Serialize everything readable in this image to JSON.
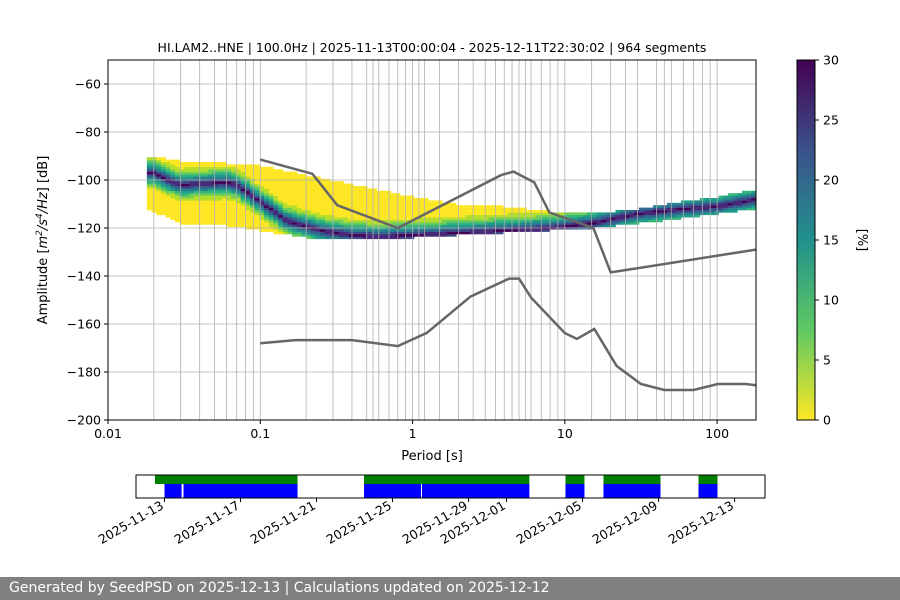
{
  "chart_data": {
    "type": "heatmap",
    "title": "HI.LAM2..HNE | 100.0Hz | 2025-11-13T00:00:04 - 2025-12-11T22:30:02 | 964 segments",
    "xlabel": "Period [s]",
    "ylabel_parts": [
      "Amplitude [",
      "m",
      "2",
      "/s",
      "4",
      "/Hz",
      "] [dB]"
    ],
    "x_scale": "log",
    "xlim": [
      0.01,
      180
    ],
    "ylim": [
      -200,
      -50
    ],
    "x_ticks": [
      {
        "value": 0.01,
        "label": "0.01"
      },
      {
        "value": 0.1,
        "label": "0.1"
      },
      {
        "value": 1,
        "label": "1"
      },
      {
        "value": 10,
        "label": "10"
      },
      {
        "value": 100,
        "label": "100"
      }
    ],
    "y_ticks": [
      {
        "value": -60,
        "label": "−60"
      },
      {
        "value": -80,
        "label": "−80"
      },
      {
        "value": -100,
        "label": "−100"
      },
      {
        "value": -120,
        "label": "−120"
      },
      {
        "value": -140,
        "label": "−140"
      },
      {
        "value": -160,
        "label": "−160"
      },
      {
        "value": -180,
        "label": "−180"
      },
      {
        "value": -200,
        "label": "−200"
      }
    ],
    "colorbar": {
      "label": "[%]",
      "range": [
        0,
        30
      ],
      "ticks": [
        {
          "value": 0,
          "label": "0"
        },
        {
          "value": 5,
          "label": "5"
        },
        {
          "value": 10,
          "label": "10"
        },
        {
          "value": 15,
          "label": "15"
        },
        {
          "value": 20,
          "label": "20"
        },
        {
          "value": 25,
          "label": "25"
        },
        {
          "value": 30,
          "label": "30"
        }
      ]
    },
    "noise_models": [
      {
        "name": "NHNM",
        "period": [
          0.1,
          0.22,
          0.32,
          0.8,
          3.8,
          4.6,
          6.3,
          7.9,
          15.4,
          20,
          180
        ],
        "db": [
          -91.5,
          -97.4,
          -110.5,
          -120,
          -98,
          -96.5,
          -101,
          -113.5,
          -120,
          -138.5,
          -129
        ]
      },
      {
        "name": "NLNM",
        "period": [
          0.1,
          0.17,
          0.4,
          0.8,
          1.24,
          2.4,
          4.3,
          5,
          6,
          10,
          12,
          15.6,
          21.9,
          31.6,
          45,
          70,
          101,
          154,
          180
        ],
        "db": [
          -168,
          -166.7,
          -166.7,
          -169.2,
          -163.7,
          -148.6,
          -141.1,
          -141.1,
          -149,
          -163.8,
          -166.2,
          -162.1,
          -177.5,
          -185,
          -187.5,
          -187.5,
          -185,
          -185,
          -185.5
        ]
      },
      {
        "name": "mode_ridge",
        "period": [
          0.02,
          0.025,
          0.03,
          0.04,
          0.06,
          0.07,
          0.1,
          0.15,
          0.25,
          0.4,
          0.6,
          1,
          2,
          4,
          8,
          15,
          30,
          60,
          100,
          180
        ],
        "db": [
          -97,
          -100,
          -102,
          -101.5,
          -101,
          -102,
          -109,
          -117,
          -121,
          -123,
          -123.5,
          -123,
          -122,
          -121,
          -120,
          -118,
          -114,
          -112,
          -111,
          -108
        ]
      },
      {
        "name": "band_top",
        "period": [
          0.018,
          0.03,
          0.06,
          0.1,
          0.2,
          0.5,
          1,
          2,
          4,
          8,
          15,
          30,
          60,
          100,
          180
        ],
        "db": [
          -90,
          -92,
          -93,
          -94,
          -98,
          -103,
          -107,
          -110,
          -111,
          -113,
          -114,
          -112,
          -109,
          -107,
          -104
        ]
      },
      {
        "name": "band_bottom",
        "period": [
          0.018,
          0.03,
          0.06,
          0.1,
          0.2,
          0.5,
          1,
          2,
          4,
          8,
          15,
          30,
          60,
          100,
          180
        ],
        "db": [
          -112,
          -118,
          -119,
          -121,
          -124,
          -125,
          -124,
          -123,
          -122,
          -121,
          -120,
          -118,
          -116,
          -114,
          -112
        ]
      }
    ],
    "period_lines": [
      0.02,
      0.03,
      0.04,
      0.05,
      0.06,
      0.07,
      0.08,
      0.09,
      0.1,
      0.2,
      0.3,
      0.4,
      0.5,
      0.55,
      0.6,
      0.7,
      0.8,
      0.9,
      1.0,
      1.1,
      1.2,
      1.5,
      2,
      2.5,
      3,
      3.5,
      4,
      4.5,
      5,
      5.5,
      6,
      7,
      8,
      9,
      10,
      15,
      20,
      25,
      30,
      40,
      45,
      50,
      60,
      70,
      80,
      90,
      100
    ],
    "timeline": {
      "ticks": [
        {
          "day": 13,
          "label": "2025-11-13"
        },
        {
          "day": 17,
          "label": "2025-11-17"
        },
        {
          "day": 21,
          "label": "2025-11-21"
        },
        {
          "day": 25,
          "label": "2025-11-25"
        },
        {
          "day": 29,
          "label": "2025-11-29"
        },
        {
          "day": 31,
          "label": "2025-12-01"
        },
        {
          "day": 35,
          "label": "2025-12-05"
        },
        {
          "day": 39,
          "label": "2025-12-09"
        },
        {
          "day": 43,
          "label": "2025-12-13"
        }
      ],
      "day_range": [
        11.5,
        44.6
      ],
      "data_spans": [
        [
          12.5,
          20
        ],
        [
          23.5,
          32.2
        ],
        [
          34.1,
          35.1
        ],
        [
          36.1,
          39.1
        ],
        [
          41.1,
          42.1
        ]
      ],
      "used_spans": [
        [
          13,
          13.9
        ],
        [
          14,
          20
        ],
        [
          23.5,
          26.5
        ],
        [
          26.55,
          32.2
        ],
        [
          34.1,
          35.1
        ],
        [
          36.1,
          39.1
        ],
        [
          41.1,
          42.1
        ]
      ],
      "colors": {
        "data": "#008000",
        "used": "#0000ff"
      }
    }
  },
  "footer": {
    "text": "Generated by SeedPSD on 2025-12-13 | Calculations updated on 2025-12-12"
  }
}
